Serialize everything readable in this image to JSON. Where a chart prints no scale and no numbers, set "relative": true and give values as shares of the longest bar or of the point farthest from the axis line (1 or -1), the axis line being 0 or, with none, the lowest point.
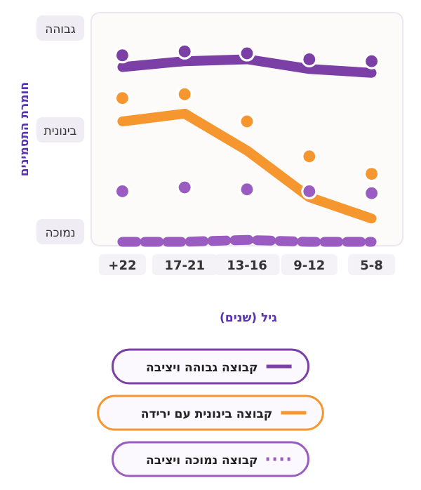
{
  "chart_data": {
    "type": "line",
    "ylabel": "חומרת התסמינים",
    "xlabel": "גיל (שנים)",
    "categories": [
      "+22",
      "17-21",
      "13-16",
      "9-12",
      "5-8"
    ],
    "relative": true,
    "legend": "bottom",
    "annotations": [
      "גבוהה",
      "בינונית",
      "נמוכה"
    ],
    "series": [
      {
        "name": "קבוצה גבוהה ויציבה",
        "color": "#7b3fa6",
        "line_style": "solid",
        "values": [
          0.92,
          0.95,
          0.96,
          0.91,
          0.89
        ]
      },
      {
        "name": "קבוצה בינונית עם ירידה",
        "color": "#f5962e",
        "line_style": "solid",
        "values": [
          0.64,
          0.68,
          0.49,
          0.25,
          0.14
        ]
      },
      {
        "name": "קבוצה נמוכה ויציבה",
        "color": "#9a5cc0",
        "line_style": "dashed",
        "values": [
          0.02,
          0.02,
          0.03,
          0.02,
          0.02
        ]
      },
      {
        "type": "scatter",
        "marker": "circle",
        "color": "#7b3fa6",
        "values": [
          0.98,
          1,
          0.99,
          0.96,
          0.95
        ]
      },
      {
        "type": "scatter",
        "marker": "circle",
        "color": "#f5962e",
        "values": [
          0.76,
          0.78,
          0.64,
          0.46,
          0.37
        ]
      },
      {
        "type": "scatter",
        "marker": "circle",
        "color": "#9a5cc0",
        "values": [
          0.28,
          0.3,
          0.29,
          0.28,
          0.27
        ]
      }
    ]
  }
}
